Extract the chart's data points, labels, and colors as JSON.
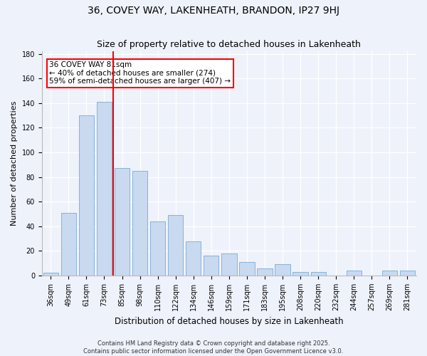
{
  "title": "36, COVEY WAY, LAKENHEATH, BRANDON, IP27 9HJ",
  "subtitle": "Size of property relative to detached houses in Lakenheath",
  "xlabel": "Distribution of detached houses by size in Lakenheath",
  "ylabel": "Number of detached properties",
  "categories": [
    "36sqm",
    "49sqm",
    "61sqm",
    "73sqm",
    "85sqm",
    "98sqm",
    "110sqm",
    "122sqm",
    "134sqm",
    "146sqm",
    "159sqm",
    "171sqm",
    "183sqm",
    "195sqm",
    "208sqm",
    "220sqm",
    "232sqm",
    "244sqm",
    "257sqm",
    "269sqm",
    "281sqm"
  ],
  "values": [
    2,
    51,
    130,
    141,
    87,
    85,
    44,
    49,
    28,
    16,
    18,
    11,
    6,
    9,
    3,
    3,
    0,
    4,
    0,
    4,
    4
  ],
  "bar_color": "#c8d9f0",
  "bar_edge_color": "#7baad4",
  "reference_line_x": 3.5,
  "reference_line_color": "red",
  "annotation_title": "36 COVEY WAY 81sqm",
  "annotation_line1": "← 40% of detached houses are smaller (274)",
  "annotation_line2": "59% of semi-detached houses are larger (407) →",
  "annotation_box_color": "white",
  "annotation_box_edge_color": "red",
  "ylim": [
    0,
    182
  ],
  "yticks": [
    0,
    20,
    40,
    60,
    80,
    100,
    120,
    140,
    160,
    180
  ],
  "footer_line1": "Contains HM Land Registry data © Crown copyright and database right 2025.",
  "footer_line2": "Contains public sector information licensed under the Open Government Licence v3.0.",
  "background_color": "#eef2fb",
  "grid_color": "#ffffff",
  "title_fontsize": 10,
  "subtitle_fontsize": 9,
  "ylabel_fontsize": 8,
  "xlabel_fontsize": 8.5,
  "tick_fontsize": 7,
  "footer_fontsize": 6,
  "annotation_fontsize": 7.5
}
